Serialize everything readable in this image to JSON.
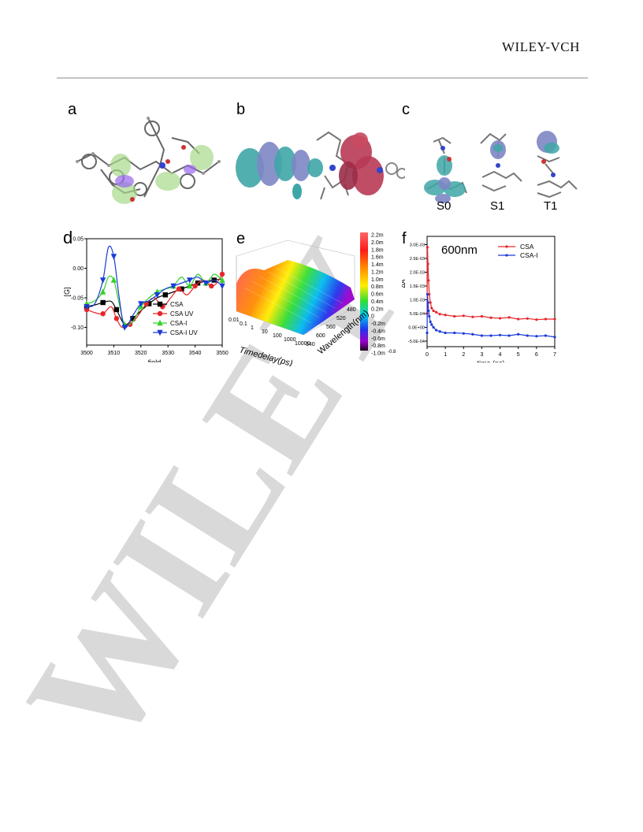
{
  "header": {
    "brand": "WILEY-VCH"
  },
  "watermark": {
    "text": "WILEY"
  },
  "panels": {
    "a": {
      "letter": "a"
    },
    "b": {
      "letter": "b"
    },
    "c": {
      "letter": "c",
      "states": [
        "S0",
        "S1",
        "T1"
      ]
    },
    "d": {
      "letter": "d"
    },
    "e": {
      "letter": "e"
    },
    "f": {
      "letter": "f"
    }
  },
  "chart_data": [
    {
      "id": "d",
      "type": "line",
      "xlabel": "field",
      "ylabel": "[G]",
      "xlim": [
        3500,
        3550
      ],
      "ylim": [
        -0.13,
        0.05
      ],
      "xticks": [
        3500,
        3510,
        3520,
        3530,
        3540,
        3550
      ],
      "yticks": [
        0.05,
        0.0,
        -0.05,
        -0.1
      ],
      "ytick_labels": [
        "0.05",
        "0.00",
        "-0.05",
        "-0.10"
      ],
      "legend_position": "bottom-right",
      "series": [
        {
          "name": "CSA",
          "color": "#000000",
          "marker": "square",
          "x": [
            3500,
            3503,
            3506,
            3509,
            3511,
            3514,
            3517,
            3520,
            3523,
            3526,
            3529,
            3532,
            3535,
            3538,
            3541,
            3544,
            3547,
            3550
          ],
          "y": [
            -0.065,
            -0.062,
            -0.058,
            -0.056,
            -0.07,
            -0.095,
            -0.085,
            -0.072,
            -0.06,
            -0.05,
            -0.045,
            -0.04,
            -0.035,
            -0.03,
            -0.025,
            -0.022,
            -0.02,
            -0.018
          ]
        },
        {
          "name": "CSA UV",
          "color": "#e8262a",
          "marker": "circle",
          "x": [
            3500,
            3503,
            3506,
            3509,
            3511,
            3513,
            3516,
            3519,
            3522,
            3525,
            3528,
            3531,
            3534,
            3537,
            3540,
            3543,
            3546,
            3548,
            3550
          ],
          "y": [
            -0.07,
            -0.075,
            -0.077,
            -0.065,
            -0.085,
            -0.1,
            -0.095,
            -0.08,
            -0.06,
            -0.05,
            -0.065,
            -0.05,
            -0.035,
            -0.045,
            -0.03,
            -0.02,
            -0.03,
            -0.025,
            -0.01
          ]
        },
        {
          "name": "CSA-I",
          "color": "#33d12b",
          "marker": "triangle-up",
          "x": [
            3500,
            3503,
            3506,
            3508,
            3510,
            3512,
            3514,
            3517,
            3520,
            3523,
            3526,
            3529,
            3532,
            3535,
            3538,
            3541,
            3544,
            3547,
            3550
          ],
          "y": [
            -0.06,
            -0.055,
            -0.04,
            -0.015,
            -0.02,
            -0.06,
            -0.095,
            -0.09,
            -0.065,
            -0.05,
            -0.04,
            -0.035,
            -0.03,
            -0.015,
            -0.03,
            -0.01,
            -0.025,
            -0.01,
            -0.02
          ]
        },
        {
          "name": "CSA-I UV",
          "color": "#1a3bd8",
          "marker": "triangle-down",
          "x": [
            3500,
            3503,
            3506,
            3508,
            3510,
            3512,
            3514,
            3517,
            3520,
            3523,
            3526,
            3529,
            3532,
            3535,
            3538,
            3541,
            3544,
            3547,
            3550
          ],
          "y": [
            -0.065,
            -0.06,
            -0.02,
            0.035,
            0.02,
            -0.05,
            -0.1,
            -0.08,
            -0.06,
            -0.055,
            -0.045,
            -0.035,
            -0.03,
            -0.025,
            -0.02,
            -0.015,
            -0.025,
            -0.02,
            -0.03
          ]
        }
      ]
    },
    {
      "id": "e",
      "type": "surface3d",
      "xlabel": "Timedelay(ps)",
      "ylabel": "Wavelength(nm)",
      "xticks": [
        "0.01",
        "0.1",
        "1",
        "10",
        "100",
        "1000",
        "10000"
      ],
      "yticks": [
        "480",
        "520",
        "560",
        "600",
        "640"
      ],
      "colorbar_labels": [
        "2.2m",
        "2.0m",
        "1.8m",
        "1.6m",
        "1.4m",
        "1.2m",
        "1.0m",
        "0.8m",
        "0.6m",
        "0.4m",
        "0.2m",
        "0",
        "-0.2m",
        "-0.4m",
        "-0.6m",
        "-0.8m",
        "-1.0m"
      ],
      "colorbar_extra_label": "-0.8",
      "colorbar_range": [
        -1.0,
        2.2
      ]
    },
    {
      "id": "f",
      "type": "line",
      "annotation": "600nm",
      "xlabel": "time (ps)",
      "ylabel": "ΔA",
      "xlim": [
        0,
        7
      ],
      "ylim": [
        -0.0007,
        0.0033
      ],
      "xticks": [
        0,
        1,
        2,
        3,
        4,
        5,
        6,
        7
      ],
      "yticks": [
        0.003,
        0.0025,
        0.002,
        0.0015,
        0.001,
        0.0005,
        0.0,
        -0.0005
      ],
      "ytick_labels": [
        "3.0E-03",
        "2.5E-03",
        "2.0E-03",
        "1.5E-03",
        "1.0E-03",
        "5.0E-04",
        "0.0E+00",
        "-5.0E-04"
      ],
      "legend_position": "top-right",
      "series": [
        {
          "name": "CSA",
          "color": "#e8262a",
          "x": [
            0,
            0.02,
            0.05,
            0.08,
            0.12,
            0.18,
            0.25,
            0.35,
            0.5,
            0.7,
            1.0,
            1.5,
            2.0,
            2.5,
            3.0,
            3.5,
            4.0,
            4.5,
            5.0,
            5.5,
            6.0,
            6.5,
            7.0
          ],
          "y": [
            0.0005,
            0.0029,
            0.0023,
            0.0017,
            0.0012,
            0.0009,
            0.0007,
            0.0006,
            0.00055,
            0.00048,
            0.00045,
            0.0004,
            0.00042,
            0.00038,
            0.0004,
            0.00035,
            0.00033,
            0.00036,
            0.0003,
            0.00032,
            0.00028,
            0.0003,
            0.0003
          ]
        },
        {
          "name": "CSA-I",
          "color": "#1a3bd8",
          "x": [
            0,
            0.02,
            0.05,
            0.08,
            0.12,
            0.18,
            0.25,
            0.35,
            0.5,
            0.7,
            1.0,
            1.5,
            2.0,
            2.5,
            3.0,
            3.5,
            4.0,
            4.5,
            5.0,
            5.5,
            6.0,
            6.5,
            7.0
          ],
          "y": [
            -0.0002,
            0.0012,
            0.0009,
            0.0006,
            0.0004,
            0.0002,
            0.0001,
            0.0,
            -0.0001,
            -0.00015,
            -0.0002,
            -0.0002,
            -0.00022,
            -0.00025,
            -0.0003,
            -0.0003,
            -0.00028,
            -0.0003,
            -0.00025,
            -0.0003,
            -0.00032,
            -0.0003,
            -0.00035
          ]
        }
      ]
    }
  ]
}
